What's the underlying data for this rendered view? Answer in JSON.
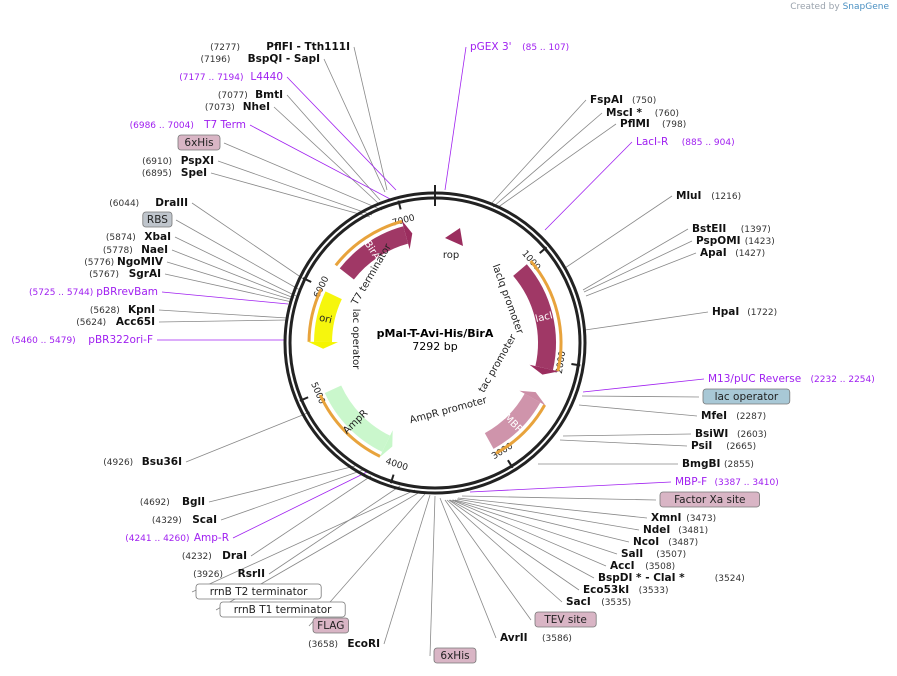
{
  "credit": {
    "prefix": "Created by",
    "brand": "SnapGene"
  },
  "plasmid": {
    "name": "pMal-T-Avi-His/BirA",
    "length": "7292 bp",
    "bp": 7292
  },
  "colors": {
    "feature_maroon": "#9b2d5e",
    "feature_pink": "#cc8ea6",
    "ori": "#f5f500",
    "ampr": "#c7f7c9",
    "primer": "#a020f0",
    "orange_halo": "#e8a33c",
    "tag_box": "#d9b5c5",
    "lac_box": "#a8c8d6",
    "rbs_box": "#bfc5cc"
  },
  "ticks": [
    1000,
    2000,
    3000,
    4000,
    5000,
    6000,
    7000
  ],
  "features_circle": [
    {
      "label": "lacI",
      "start": 1000,
      "end": 2085,
      "strand": 1,
      "color": "maroon"
    },
    {
      "label": "MBP",
      "start": 2420,
      "end": 3060,
      "strand": -1,
      "color": "pink"
    },
    {
      "label": "AmpR",
      "start": 4170,
      "end": 4975,
      "strand": -1,
      "color": "ampr"
    },
    {
      "label": "ori",
      "start": 5480,
      "end": 5980,
      "strand": -1,
      "color": "ori"
    },
    {
      "label": "BirA",
      "start": 6240,
      "end": 6985,
      "strand": 1,
      "color": "maroon"
    }
  ],
  "inner_labels": [
    {
      "text": "rop"
    },
    {
      "text": "lacIq promoter"
    },
    {
      "text": "tac promoter"
    },
    {
      "text": "AmpR promoter"
    },
    {
      "text": "lac operator"
    },
    {
      "text": "T7 terminator"
    }
  ],
  "labels": [
    {
      "text": "PflFI - Tth111I",
      "num": "(7277)",
      "kind": "enzyme"
    },
    {
      "text": "BspQI - SapI",
      "num": "(7196)",
      "kind": "enzyme"
    },
    {
      "text": "L4440",
      "num": "(7177 .. 7194)",
      "kind": "primer"
    },
    {
      "text": "BmtI",
      "num": "(7077)",
      "kind": "enzyme"
    },
    {
      "text": "NheI",
      "num": "(7073)",
      "kind": "enzyme"
    },
    {
      "text": "T7 Term",
      "num": "(6986 .. 7004)",
      "kind": "primer"
    },
    {
      "text": "6xHis",
      "num": "",
      "kind": "tag"
    },
    {
      "text": "PspXI",
      "num": "(6910)",
      "kind": "enzyme"
    },
    {
      "text": "SpeI",
      "num": "(6895)",
      "kind": "enzyme"
    },
    {
      "text": "DraIII",
      "num": "(6044)",
      "kind": "enzyme"
    },
    {
      "text": "RBS",
      "num": "",
      "kind": "rbs"
    },
    {
      "text": "XbaI",
      "num": "(5874)",
      "kind": "enzyme"
    },
    {
      "text": "NaeI",
      "num": "(5778)",
      "kind": "enzyme"
    },
    {
      "text": "NgoMIV",
      "num": "(5776)",
      "kind": "enzyme"
    },
    {
      "text": "SgrAI",
      "num": "(5767)",
      "kind": "enzyme"
    },
    {
      "text": "pBRrevBam",
      "num": "(5725 .. 5744)",
      "kind": "primer"
    },
    {
      "text": "KpnI",
      "num": "(5628)",
      "kind": "enzyme"
    },
    {
      "text": "Acc65I",
      "num": "(5624)",
      "kind": "enzyme"
    },
    {
      "text": "pBR322ori-F",
      "num": "(5460 .. 5479)",
      "kind": "primer"
    },
    {
      "text": "Bsu36I",
      "num": "(4926)",
      "kind": "enzyme"
    },
    {
      "text": "BglI",
      "num": "(4692)",
      "kind": "enzyme"
    },
    {
      "text": "ScaI",
      "num": "(4329)",
      "kind": "enzyme"
    },
    {
      "text": "Amp-R",
      "num": "(4241 .. 4260)",
      "kind": "primer"
    },
    {
      "text": "DraI",
      "num": "(4232)",
      "kind": "enzyme"
    },
    {
      "text": "RsrII",
      "num": "(3926)",
      "kind": "enzyme"
    },
    {
      "text": "rrnB T2 terminator",
      "num": "",
      "kind": "term"
    },
    {
      "text": "rrnB T1 terminator",
      "num": "",
      "kind": "term"
    },
    {
      "text": "FLAG",
      "num": "",
      "kind": "tag"
    },
    {
      "text": "EcoRI",
      "num": "(3658)",
      "kind": "enzyme"
    },
    {
      "text": "6xHis",
      "num": "",
      "kind": "tag"
    },
    {
      "text": "pGEX 3'",
      "num": "(85 .. 107)",
      "kind": "primer"
    },
    {
      "text": "FspAI",
      "num": "(750)",
      "kind": "enzyme"
    },
    {
      "text": "MscI *",
      "num": "(760)",
      "kind": "enzyme"
    },
    {
      "text": "PflMI",
      "num": "(798)",
      "kind": "enzyme"
    },
    {
      "text": "LacI-R",
      "num": "(885 .. 904)",
      "kind": "primer"
    },
    {
      "text": "MluI",
      "num": "(1216)",
      "kind": "enzyme"
    },
    {
      "text": "BstEII",
      "num": "(1397)",
      "kind": "enzyme"
    },
    {
      "text": "PspOMI",
      "num": "(1423)",
      "kind": "enzyme"
    },
    {
      "text": "ApaI",
      "num": "(1427)",
      "kind": "enzyme"
    },
    {
      "text": "HpaI",
      "num": "(1722)",
      "kind": "enzyme"
    },
    {
      "text": "M13/pUC Reverse",
      "num": "(2232 .. 2254)",
      "kind": "primer"
    },
    {
      "text": "lac operator",
      "num": "",
      "kind": "lac"
    },
    {
      "text": "MfeI",
      "num": "(2287)",
      "kind": "enzyme"
    },
    {
      "text": "BsiWI",
      "num": "(2603)",
      "kind": "enzyme"
    },
    {
      "text": "PsiI",
      "num": "(2665)",
      "kind": "enzyme"
    },
    {
      "text": "BmgBI",
      "num": "(2855)",
      "kind": "enzyme"
    },
    {
      "text": "MBP-F",
      "num": "(3387 .. 3410)",
      "kind": "primer"
    },
    {
      "text": "Factor Xa site",
      "num": "",
      "kind": "tag"
    },
    {
      "text": "XmnI",
      "num": "(3473)",
      "kind": "enzyme"
    },
    {
      "text": "NdeI",
      "num": "(3481)",
      "kind": "enzyme"
    },
    {
      "text": "NcoI",
      "num": "(3487)",
      "kind": "enzyme"
    },
    {
      "text": "SalI",
      "num": "(3507)",
      "kind": "enzyme"
    },
    {
      "text": "AccI",
      "num": "(3508)",
      "kind": "enzyme"
    },
    {
      "text": "BspDI * - ClaI *",
      "num": "(3524)",
      "kind": "enzyme"
    },
    {
      "text": "Eco53kI",
      "num": "(3533)",
      "kind": "enzyme"
    },
    {
      "text": "SacI",
      "num": "(3535)",
      "kind": "enzyme"
    },
    {
      "text": "TEV site",
      "num": "",
      "kind": "tag"
    },
    {
      "text": "AvrII",
      "num": "(3586)",
      "kind": "enzyme"
    }
  ]
}
